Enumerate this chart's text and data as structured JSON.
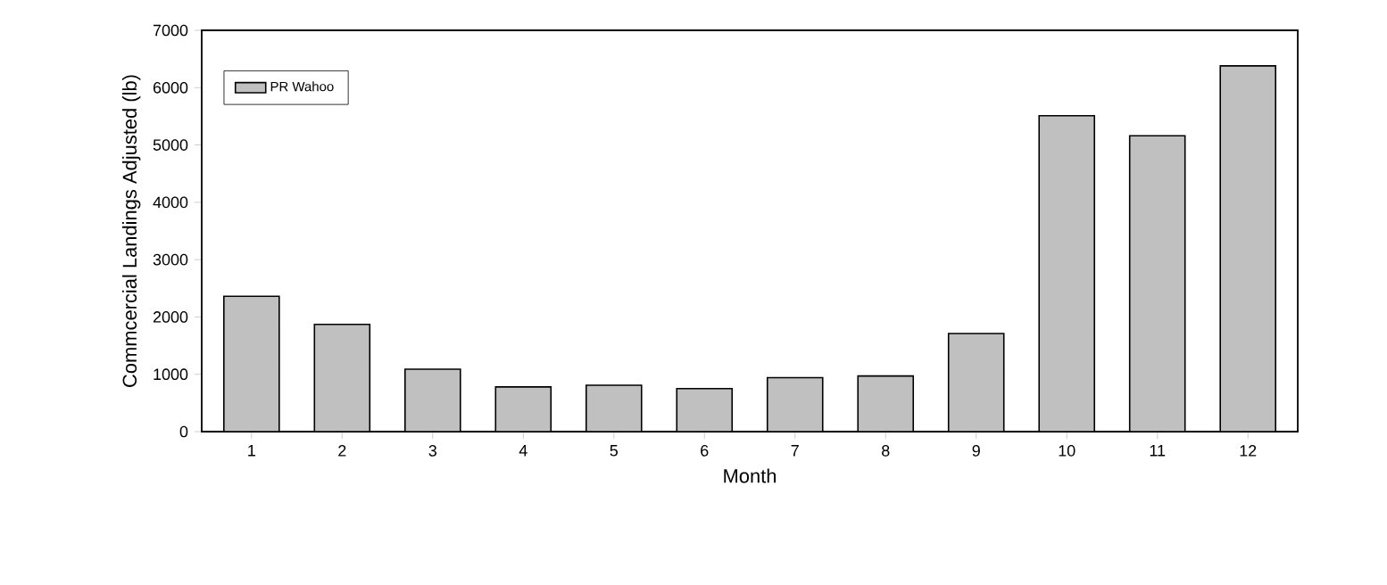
{
  "chart_data": {
    "type": "bar",
    "xlabel": "Month",
    "ylabel": "Commcercial Landings Adjusted (lb)",
    "categories": [
      "1",
      "2",
      "3",
      "4",
      "5",
      "6",
      "7",
      "8",
      "9",
      "10",
      "11",
      "12"
    ],
    "series": [
      {
        "name": "PR Wahoo",
        "color": "#c0c0c0",
        "values": [
          2360,
          1870,
          1090,
          780,
          810,
          750,
          940,
          970,
          1710,
          5510,
          5160,
          6380
        ]
      }
    ],
    "ylim": [
      0,
      7000
    ],
    "yticks": [
      0,
      1000,
      2000,
      3000,
      4000,
      5000,
      6000,
      7000
    ],
    "legend": "top left",
    "grid": false
  }
}
